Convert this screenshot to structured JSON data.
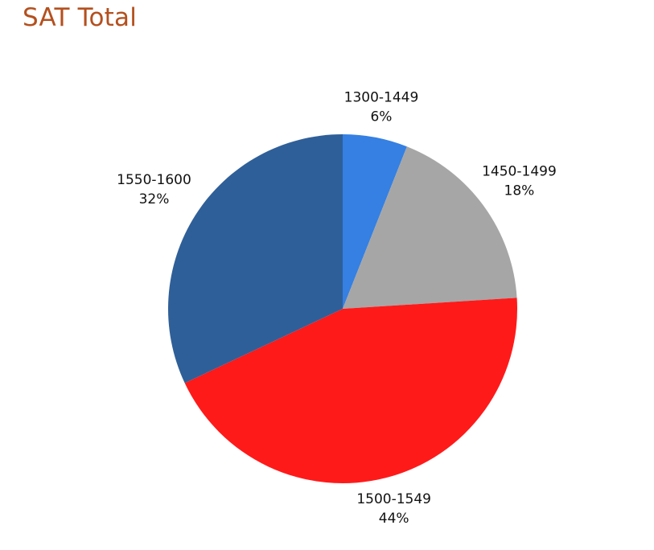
{
  "chart_data": {
    "type": "pie",
    "title": "SAT Total",
    "title_color": "#B4501E",
    "categories": [
      "1300-1449",
      "1450-1499",
      "1500-1549",
      "1550-1600"
    ],
    "values": [
      6,
      18,
      44,
      32
    ],
    "value_labels": [
      "6%",
      "18%",
      "44%",
      "32%"
    ],
    "colors": [
      "#3580E2",
      "#A6A6A6",
      "#FF1A1A",
      "#2F5F98"
    ],
    "start_angle_deg": 0,
    "direction": "clockwise",
    "legend": "none"
  }
}
